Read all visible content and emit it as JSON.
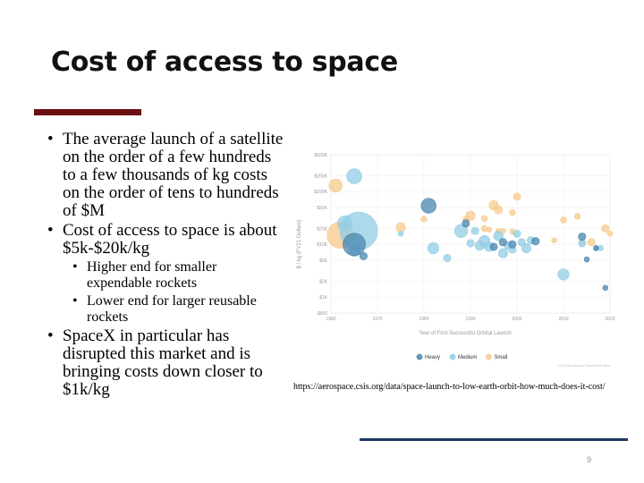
{
  "slide": {
    "title": "Cost of access to space",
    "page_number": "9",
    "source_url": "https://aerospace.csis.org/data/space-launch-to-low-earth-orbit-how-much-does-it-cost/",
    "accent_color": "#6b0f0f",
    "rule_color": "#1f3864"
  },
  "bullets": [
    {
      "level": 1,
      "text": "The average launch of a satellite on the order of a few hundreds to a few thousands of kg costs on the order of tens to hundreds of $M"
    },
    {
      "level": 1,
      "text": "Cost of access to space is about $5k-$20k/kg"
    },
    {
      "level": 2,
      "text": "Higher end for smaller expendable rockets"
    },
    {
      "level": 2,
      "text": "Lower end for larger reusable rockets"
    },
    {
      "level": 1,
      "text": "SpaceX in particular has disrupted this market and is bringing costs down closer to $1k/kg"
    }
  ],
  "chart_data": {
    "type": "scatter",
    "xlabel": "Year of First Successful Orbital Launch",
    "ylabel": "$ / kg (FY21 Dollars)",
    "xlim": [
      1960,
      2020
    ],
    "ylim": [
      500,
      500000
    ],
    "yscale": "log",
    "x_ticks": [
      "1960",
      "1970",
      "1980",
      "1990",
      "2000",
      "2010",
      "2020"
    ],
    "y_ticks": [
      {
        "value": 500000,
        "label": "$500K"
      },
      {
        "value": 200000,
        "label": "$200K"
      },
      {
        "value": 100000,
        "label": "$100K"
      },
      {
        "value": 50000,
        "label": "$50K"
      },
      {
        "value": 20000,
        "label": "$20K"
      },
      {
        "value": 10000,
        "label": "$10K"
      },
      {
        "value": 5000,
        "label": "$5K"
      },
      {
        "value": 2000,
        "label": "$2K"
      },
      {
        "value": 1000,
        "label": "$1K"
      },
      {
        "value": 500,
        "label": "$500"
      }
    ],
    "grid": true,
    "legend_position": "bottom",
    "credit": "CSIS Aerospace Security Project",
    "series": [
      {
        "name": "Heavy",
        "color": "#4a86ad",
        "points": [
          {
            "x": 1965,
            "y": 10000,
            "size": 6
          },
          {
            "x": 1967,
            "y": 6000,
            "size": 2
          },
          {
            "x": 1981,
            "y": 54000,
            "size": 4
          },
          {
            "x": 1989,
            "y": 25000,
            "size": 2
          },
          {
            "x": 1995,
            "y": 9000,
            "size": 2
          },
          {
            "x": 1997,
            "y": 11000,
            "size": 2
          },
          {
            "x": 1999,
            "y": 10000,
            "size": 2
          },
          {
            "x": 2004,
            "y": 11500,
            "size": 2
          },
          {
            "x": 2014,
            "y": 14000,
            "size": 2
          },
          {
            "x": 2015,
            "y": 5200,
            "size": 1.4
          },
          {
            "x": 2017,
            "y": 8500,
            "size": 1.4
          },
          {
            "x": 2019,
            "y": 1500,
            "size": 1.4
          }
        ]
      },
      {
        "name": "Medium",
        "color": "#92cde4",
        "points": [
          {
            "x": 1965,
            "y": 195000,
            "size": 4
          },
          {
            "x": 1963,
            "y": 25000,
            "size": 4
          },
          {
            "x": 1966,
            "y": 18000,
            "size": 10
          },
          {
            "x": 1965,
            "y": 7500,
            "size": 3
          },
          {
            "x": 1975,
            "y": 16000,
            "size": 1.4
          },
          {
            "x": 1982,
            "y": 8500,
            "size": 3
          },
          {
            "x": 1985,
            "y": 5500,
            "size": 2
          },
          {
            "x": 1988,
            "y": 18000,
            "size": 3.5
          },
          {
            "x": 1990,
            "y": 10500,
            "size": 2
          },
          {
            "x": 1991,
            "y": 18000,
            "size": 2
          },
          {
            "x": 1992,
            "y": 9500,
            "size": 2.5
          },
          {
            "x": 1993,
            "y": 11500,
            "size": 3
          },
          {
            "x": 1994,
            "y": 9000,
            "size": 2.5
          },
          {
            "x": 1996,
            "y": 14500,
            "size": 2.5
          },
          {
            "x": 1997,
            "y": 6800,
            "size": 2.5
          },
          {
            "x": 1998,
            "y": 9500,
            "size": 2
          },
          {
            "x": 1999,
            "y": 8000,
            "size": 2
          },
          {
            "x": 2000,
            "y": 16000,
            "size": 2
          },
          {
            "x": 2001,
            "y": 11000,
            "size": 2
          },
          {
            "x": 2002,
            "y": 8500,
            "size": 2.5
          },
          {
            "x": 2003,
            "y": 12000,
            "size": 2
          },
          {
            "x": 2010,
            "y": 2700,
            "size": 3
          },
          {
            "x": 2014,
            "y": 10500,
            "size": 2
          },
          {
            "x": 2017,
            "y": 8500,
            "size": 1.4
          },
          {
            "x": 2018,
            "y": 8500,
            "size": 1.4
          }
        ]
      },
      {
        "name": "Small",
        "color": "#f7c98c",
        "points": [
          {
            "x": 1961,
            "y": 130000,
            "size": 3.5
          },
          {
            "x": 1962,
            "y": 15000,
            "size": 7
          },
          {
            "x": 1975,
            "y": 21000,
            "size": 2.5
          },
          {
            "x": 1980,
            "y": 30000,
            "size": 1.6
          },
          {
            "x": 1989,
            "y": 30000,
            "size": 1.6
          },
          {
            "x": 1990,
            "y": 35000,
            "size": 2.5
          },
          {
            "x": 1993,
            "y": 31000,
            "size": 1.6
          },
          {
            "x": 1993,
            "y": 20000,
            "size": 1.6
          },
          {
            "x": 1995,
            "y": 55000,
            "size": 2.5
          },
          {
            "x": 1996,
            "y": 45000,
            "size": 2.2
          },
          {
            "x": 1999,
            "y": 40000,
            "size": 1.6
          },
          {
            "x": 2000,
            "y": 80000,
            "size": 2
          },
          {
            "x": 1994,
            "y": 19000,
            "size": 1.4
          },
          {
            "x": 1996,
            "y": 18000,
            "size": 1.4
          },
          {
            "x": 1997,
            "y": 18000,
            "size": 1.4
          },
          {
            "x": 1999,
            "y": 17500,
            "size": 1.4
          },
          {
            "x": 2008,
            "y": 12000,
            "size": 1.4
          },
          {
            "x": 2010,
            "y": 29000,
            "size": 1.6
          },
          {
            "x": 2013,
            "y": 34000,
            "size": 1.6
          },
          {
            "x": 2014,
            "y": 11000,
            "size": 1.6
          },
          {
            "x": 2016,
            "y": 11000,
            "size": 2
          },
          {
            "x": 2019,
            "y": 20000,
            "size": 2
          },
          {
            "x": 2020,
            "y": 16000,
            "size": 1.4
          }
        ]
      }
    ]
  }
}
